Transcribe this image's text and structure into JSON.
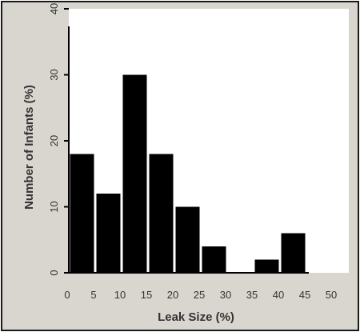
{
  "chart_data": {
    "type": "bar",
    "title": "",
    "xlabel": "Leak Size (%)",
    "ylabel": "Number of Infants (%)",
    "categories": [
      "0-5",
      "5-10",
      "10-15",
      "15-20",
      "20-25",
      "25-30",
      "30-35",
      "35-40",
      "40-45",
      "45-50"
    ],
    "bin_edges": [
      0,
      5,
      10,
      15,
      20,
      25,
      30,
      35,
      40,
      45,
      50
    ],
    "values": [
      18,
      12,
      30,
      18,
      10,
      4,
      0,
      2,
      6,
      0
    ],
    "xticks": [
      "0",
      "5",
      "10",
      "15",
      "20",
      "25",
      "30",
      "35",
      "40",
      "45",
      "50"
    ],
    "yticks": [
      "0",
      "10",
      "20",
      "30",
      "40"
    ],
    "xlim": [
      0,
      50
    ],
    "ylim": [
      0,
      40
    ],
    "grid": false,
    "bar_color": "#000000",
    "background_color": "#d9d6cf",
    "plot_background_color": "#ffffff"
  }
}
